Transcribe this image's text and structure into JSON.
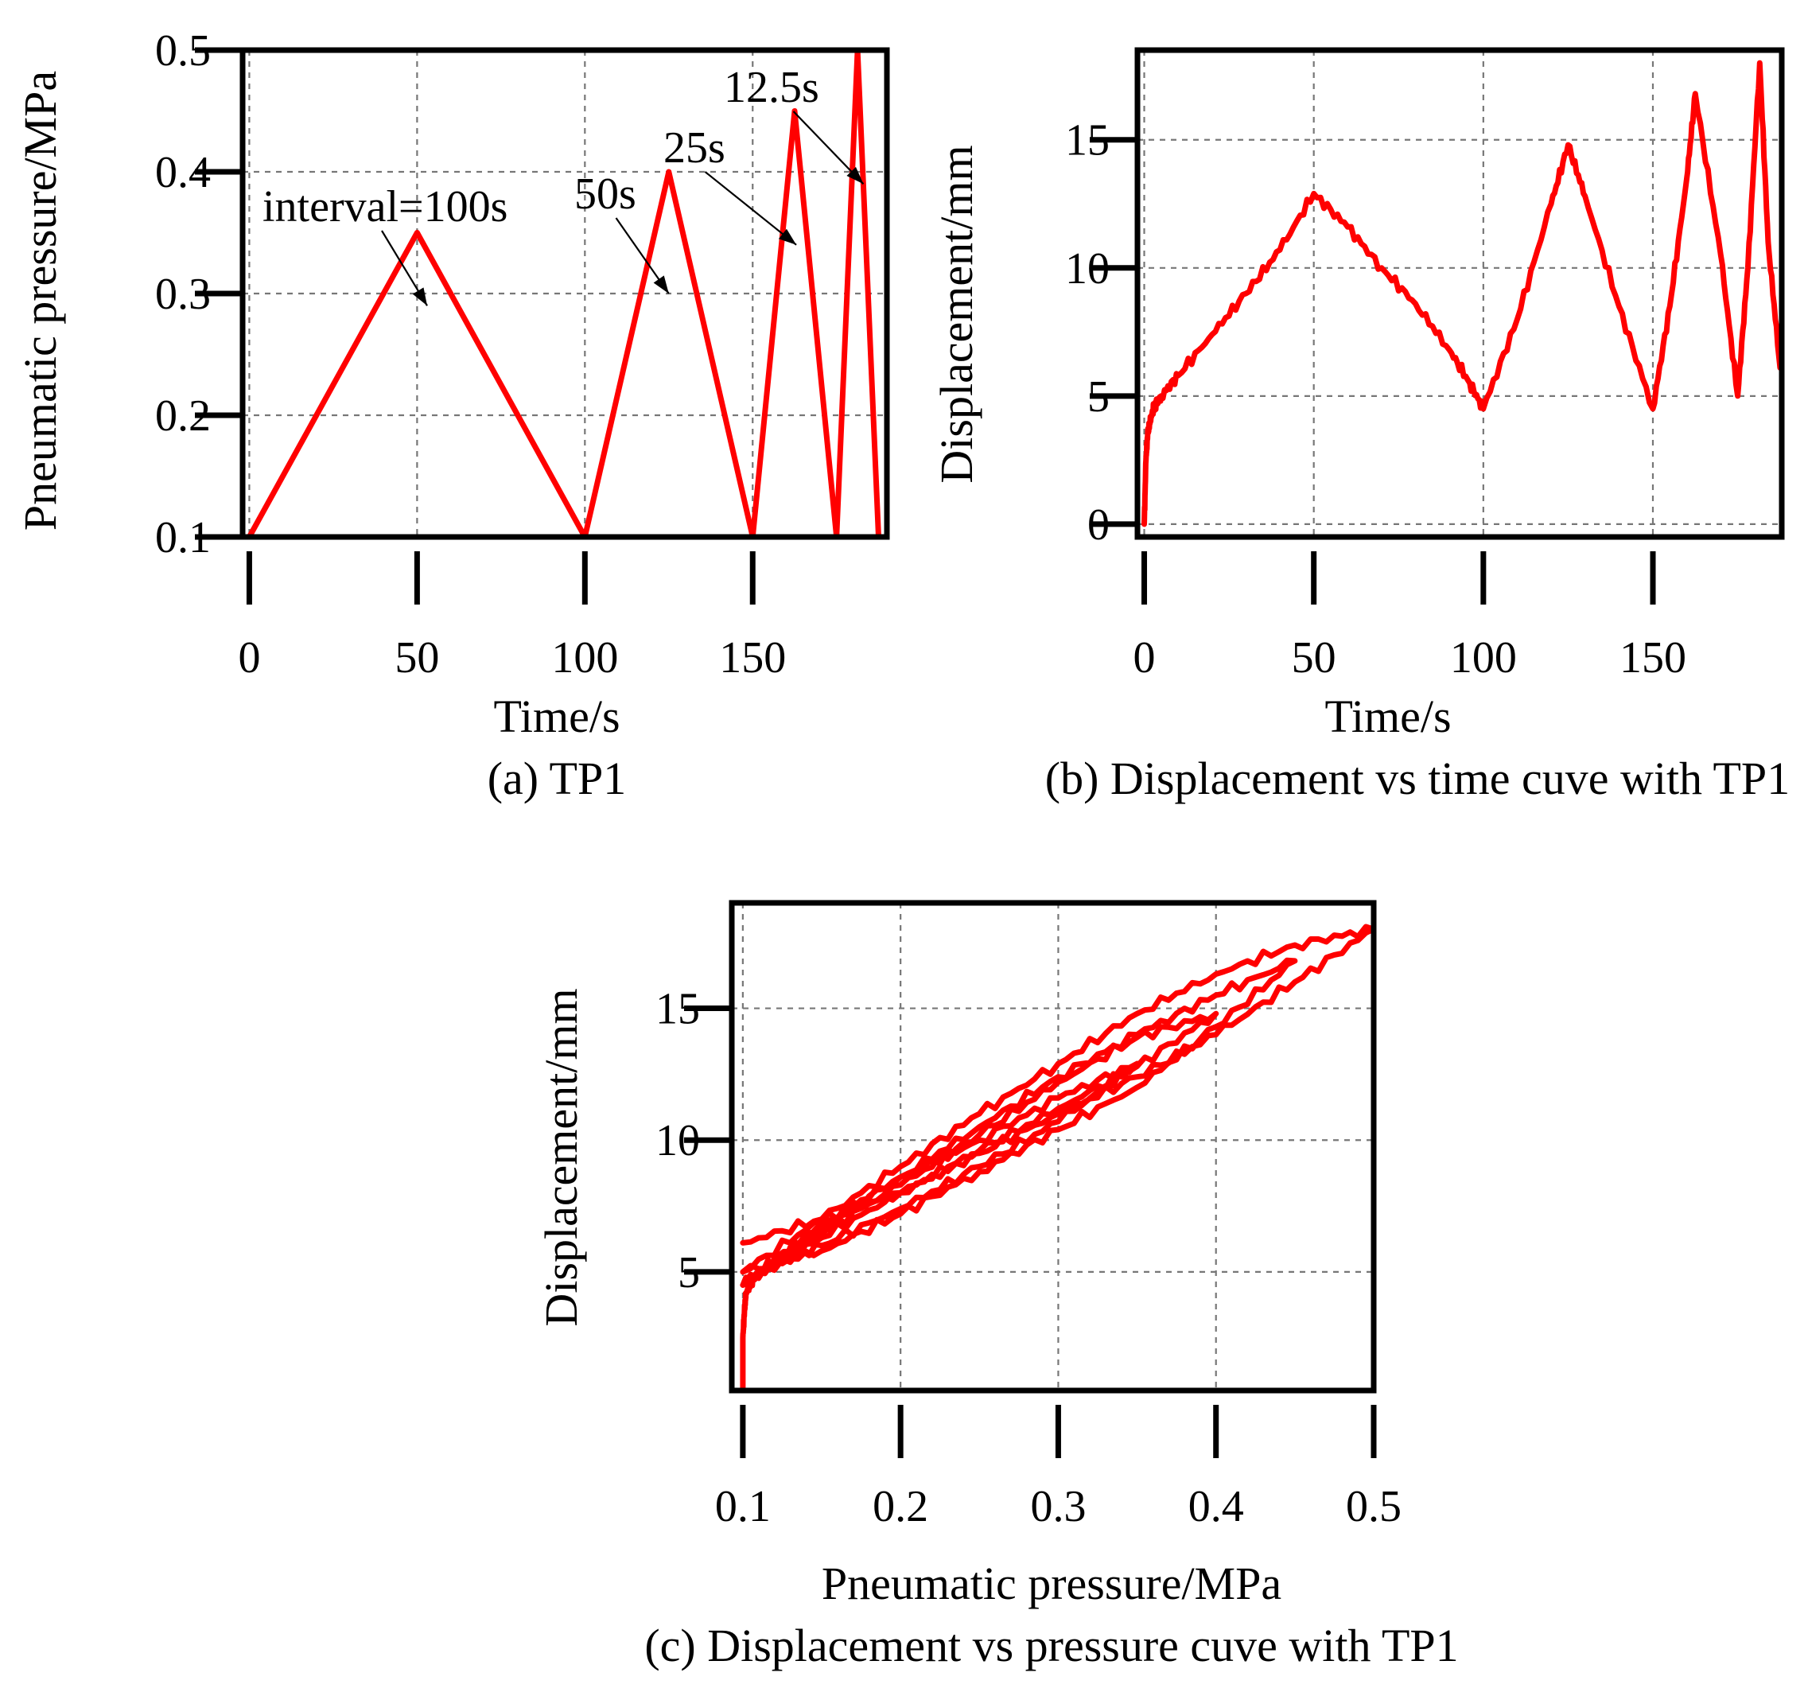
{
  "chart_data": [
    {
      "id": "a",
      "type": "line",
      "caption": "(a) TP1",
      "xlabel": "Time/s",
      "ylabel": "Pneumatic pressure/MPa",
      "xlim": [
        -2,
        190
      ],
      "ylim": [
        0.1,
        0.5
      ],
      "xticks": [
        0,
        50,
        100,
        150
      ],
      "xtick_labels": [
        "0",
        "50",
        "100",
        "150"
      ],
      "yticks": [
        0.1,
        0.2,
        0.3,
        0.4,
        0.5
      ],
      "ytick_labels": [
        "0.1",
        "0.2",
        "0.3",
        "0.4",
        "0.5"
      ],
      "grid": true,
      "series": [
        {
          "name": "pressure",
          "color": "#ff0000",
          "x": [
            0,
            50,
            100,
            125,
            150,
            162.5,
            175,
            181.25,
            187.5
          ],
          "y": [
            0.1,
            0.35,
            0.1,
            0.4,
            0.1,
            0.45,
            0.1,
            0.5,
            0.1
          ]
        }
      ],
      "annotations": [
        {
          "text": "interval=100s",
          "point": [
            53,
            0.29
          ]
        },
        {
          "text": "50s",
          "point": [
            125,
            0.3
          ]
        },
        {
          "text": "25s",
          "point": [
            163,
            0.34
          ]
        },
        {
          "text": "12.5s",
          "point": [
            183,
            0.39
          ]
        }
      ]
    },
    {
      "id": "b",
      "type": "line",
      "caption": "(b) Displacement vs time cuve with TP1",
      "xlabel": "Time/s",
      "ylabel": "Displacement/mm",
      "xlim": [
        -2,
        188
      ],
      "ylim": [
        -0.5,
        18.5
      ],
      "xticks": [
        0,
        50,
        100,
        150
      ],
      "xtick_labels": [
        "0",
        "50",
        "100",
        "150"
      ],
      "yticks": [
        0,
        5,
        10,
        15
      ],
      "ytick_labels": [
        "0",
        "5",
        "10",
        "15"
      ],
      "grid": true,
      "series": [
        {
          "name": "displacement",
          "color": "#ff0000",
          "x": [
            0,
            0.5,
            1,
            2,
            3,
            5,
            10,
            20,
            30,
            40,
            50,
            60,
            70,
            80,
            90,
            96,
            100,
            110,
            120,
            125,
            130,
            140,
            150,
            155,
            160,
            162.5,
            170,
            175,
            178,
            181.5,
            184,
            187.5
          ],
          "y": [
            0,
            2.5,
            3.5,
            4.2,
            4.6,
            5.0,
            5.8,
            7.4,
            9.0,
            10.7,
            12.9,
            11.6,
            10.0,
            8.6,
            6.8,
            5.5,
            4.5,
            8.0,
            12.5,
            14.8,
            12.8,
            8.5,
            4.5,
            8.5,
            13.5,
            16.8,
            10.5,
            5.0,
            10.0,
            18.0,
            11.0,
            6.1
          ]
        }
      ]
    },
    {
      "id": "c",
      "type": "line",
      "caption": "(c) Displacement vs pressure cuve with TP1",
      "xlabel": "Pneumatic pressure/MPa",
      "ylabel": "Displacement/mm",
      "xlim": [
        0.093,
        0.5
      ],
      "ylim": [
        0.5,
        19
      ],
      "xticks": [
        0.1,
        0.2,
        0.3,
        0.4,
        0.5
      ],
      "xtick_labels": [
        "0.1",
        "0.2",
        "0.3",
        "0.4",
        "0.5"
      ],
      "yticks": [
        5,
        10,
        15
      ],
      "ytick_labels": [
        "5",
        "10",
        "15"
      ],
      "grid": true,
      "series": [
        {
          "name": "displacement-pressure",
          "color": "#ff0000",
          "x": [
            0.1,
            0.1,
            0.101,
            0.102,
            0.105,
            0.11,
            0.15,
            0.2,
            0.25,
            0.3,
            0.35,
            0.3,
            0.25,
            0.2,
            0.15,
            0.12,
            0.1,
            0.15,
            0.2,
            0.25,
            0.3,
            0.35,
            0.4,
            0.35,
            0.3,
            0.25,
            0.2,
            0.15,
            0.1,
            0.15,
            0.2,
            0.25,
            0.3,
            0.35,
            0.4,
            0.45,
            0.4,
            0.35,
            0.3,
            0.25,
            0.2,
            0.15,
            0.1,
            0.15,
            0.2,
            0.25,
            0.3,
            0.35,
            0.4,
            0.45,
            0.5,
            0.45,
            0.4,
            0.35,
            0.3,
            0.25,
            0.2,
            0.15,
            0.1
          ],
          "y": [
            0.5,
            2.5,
            3.5,
            4.2,
            4.6,
            5.0,
            6.0,
            7.4,
            9.0,
            10.7,
            12.9,
            11.6,
            10.0,
            8.6,
            6.8,
            5.5,
            4.5,
            6.5,
            8.3,
            10.2,
            12.2,
            13.9,
            14.8,
            12.8,
            11.2,
            9.6,
            8.0,
            6.3,
            4.5,
            6.7,
            8.6,
            10.5,
            12.4,
            14.0,
            15.5,
            16.8,
            14.3,
            12.0,
            10.4,
            8.8,
            7.2,
            5.8,
            5.0,
            7.0,
            9.0,
            11.0,
            12.9,
            14.8,
            16.3,
            17.4,
            18.0,
            16.0,
            14.0,
            12.4,
            11.0,
            9.5,
            8.0,
            7.0,
            6.1
          ]
        }
      ]
    }
  ]
}
